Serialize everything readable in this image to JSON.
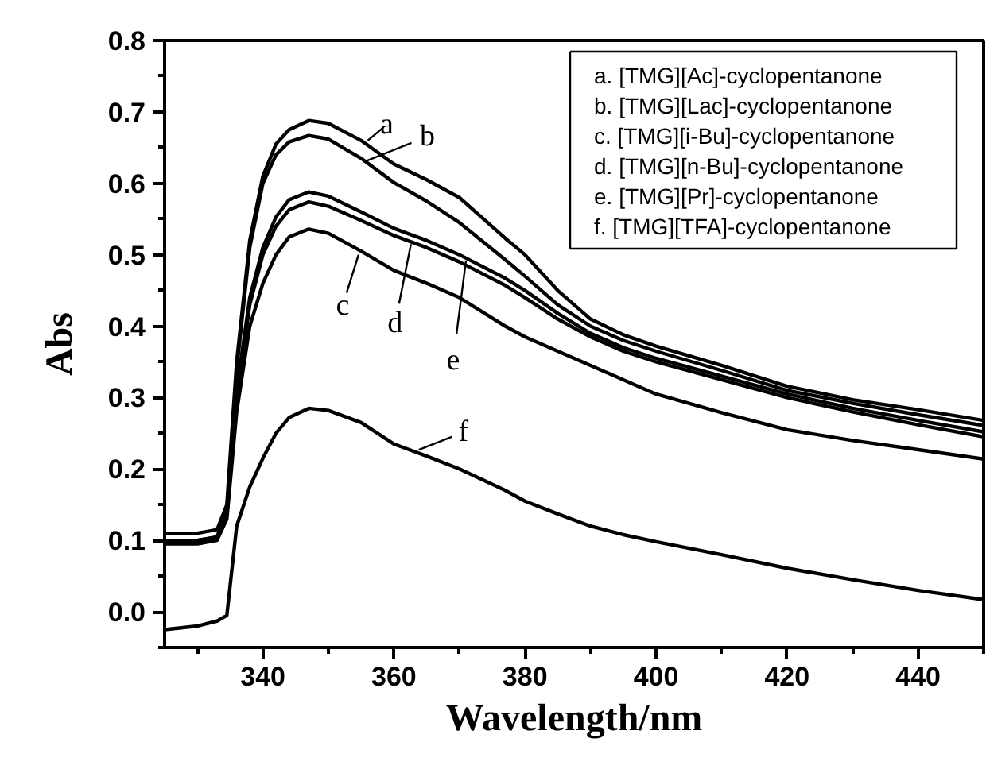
{
  "chart_data": {
    "type": "line",
    "xlabel": "Wavelength/nm",
    "ylabel": "Abs",
    "xlim": [
      325,
      450
    ],
    "ylim": [
      -0.05,
      0.8
    ],
    "xticks": [
      {
        "value": 330,
        "label": null
      },
      340,
      {
        "value": 350,
        "label": null
      },
      360,
      {
        "value": 370,
        "label": null
      },
      380,
      {
        "value": 390,
        "label": null
      },
      400,
      {
        "value": 410,
        "label": null
      },
      420,
      {
        "value": 430,
        "label": null
      },
      440,
      {
        "value": 450,
        "label": null
      }
    ],
    "yticks": [
      {
        "value": -0.05,
        "label": null
      },
      {
        "value": 0.0,
        "label": "0.0"
      },
      {
        "value": 0.05,
        "label": null
      },
      0.1,
      {
        "value": 0.15,
        "label": null
      },
      0.2,
      {
        "value": 0.25,
        "label": null
      },
      0.3,
      {
        "value": 0.35,
        "label": null
      },
      0.4,
      {
        "value": 0.45,
        "label": null
      },
      0.5,
      {
        "value": 0.55,
        "label": null
      },
      0.6,
      {
        "value": 0.65,
        "label": null
      },
      0.7,
      {
        "value": 0.75,
        "label": null
      },
      0.8
    ],
    "x": [
      325,
      330,
      333,
      334.5,
      336,
      338,
      340,
      342,
      344,
      347,
      350,
      355,
      360,
      365,
      370,
      377,
      380,
      385,
      390,
      395,
      400,
      410,
      420,
      430,
      440,
      450
    ],
    "grid": false,
    "marker": "none",
    "line_style": "solid",
    "series": [
      {
        "color": "#000000",
        "values": [
          0.11,
          0.11,
          0.115,
          0.15,
          0.35,
          0.52,
          0.61,
          0.655,
          0.675,
          0.688,
          0.684,
          0.66,
          0.627,
          0.605,
          0.58,
          0.523,
          0.5,
          0.45,
          0.41,
          0.388,
          0.372,
          0.345,
          0.316,
          0.297,
          0.283,
          0.268
        ]
      },
      {
        "color": "#000000",
        "values": [
          0.1,
          0.1,
          0.105,
          0.14,
          0.34,
          0.51,
          0.6,
          0.64,
          0.658,
          0.667,
          0.662,
          0.635,
          0.601,
          0.575,
          0.545,
          0.493,
          0.47,
          0.43,
          0.4,
          0.38,
          0.365,
          0.338,
          0.31,
          0.292,
          0.276,
          0.261
        ]
      },
      {
        "color": "#000000",
        "values": [
          0.095,
          0.095,
          0.1,
          0.13,
          0.28,
          0.4,
          0.46,
          0.5,
          0.525,
          0.536,
          0.53,
          0.505,
          0.478,
          0.46,
          0.44,
          0.4,
          0.385,
          0.365,
          0.345,
          0.325,
          0.305,
          0.279,
          0.255,
          0.24,
          0.227,
          0.214
        ]
      },
      {
        "color": "#000000",
        "values": [
          0.098,
          0.098,
          0.102,
          0.135,
          0.3,
          0.43,
          0.5,
          0.54,
          0.563,
          0.574,
          0.568,
          0.548,
          0.527,
          0.51,
          0.49,
          0.457,
          0.44,
          0.41,
          0.385,
          0.365,
          0.35,
          0.325,
          0.3,
          0.28,
          0.262,
          0.245
        ]
      },
      {
        "color": "#000000",
        "values": [
          0.1,
          0.1,
          0.104,
          0.138,
          0.31,
          0.44,
          0.51,
          0.553,
          0.577,
          0.588,
          0.582,
          0.56,
          0.537,
          0.52,
          0.5,
          0.467,
          0.45,
          0.418,
          0.39,
          0.37,
          0.355,
          0.33,
          0.305,
          0.285,
          0.268,
          0.252
        ]
      },
      {
        "color": "#000000",
        "values": [
          -0.025,
          -0.02,
          -0.013,
          -0.005,
          0.12,
          0.175,
          0.215,
          0.25,
          0.272,
          0.285,
          0.282,
          0.265,
          0.235,
          0.218,
          0.2,
          0.17,
          0.155,
          0.137,
          0.12,
          0.108,
          0.098,
          0.08,
          0.061,
          0.045,
          0.03,
          0.017
        ]
      }
    ],
    "annotations": [
      {
        "text": "a",
        "x": 356,
        "y": 0.66
      },
      {
        "text": "b",
        "x": 355.4,
        "y": 0.63
      },
      {
        "text": "c",
        "x": 354.6,
        "y": 0.5
      },
      {
        "text": "d",
        "x": 362.6,
        "y": 0.515
      },
      {
        "text": "e",
        "x": 371,
        "y": 0.492
      },
      {
        "text": "f",
        "x": 363.8,
        "y": 0.227
      },
      "a. [TMG][Ac]-cyclopentanone",
      "b. [TMG][Lac]-cyclopentanone",
      "c. [TMG][i-Bu]-cyclopentanone",
      "d. [TMG][n-Bu]-cyclopentanone",
      "e. [TMG][Pr]-cyclopentanone",
      "f. [TMG][TFA]-cyclopentanone"
    ]
  }
}
